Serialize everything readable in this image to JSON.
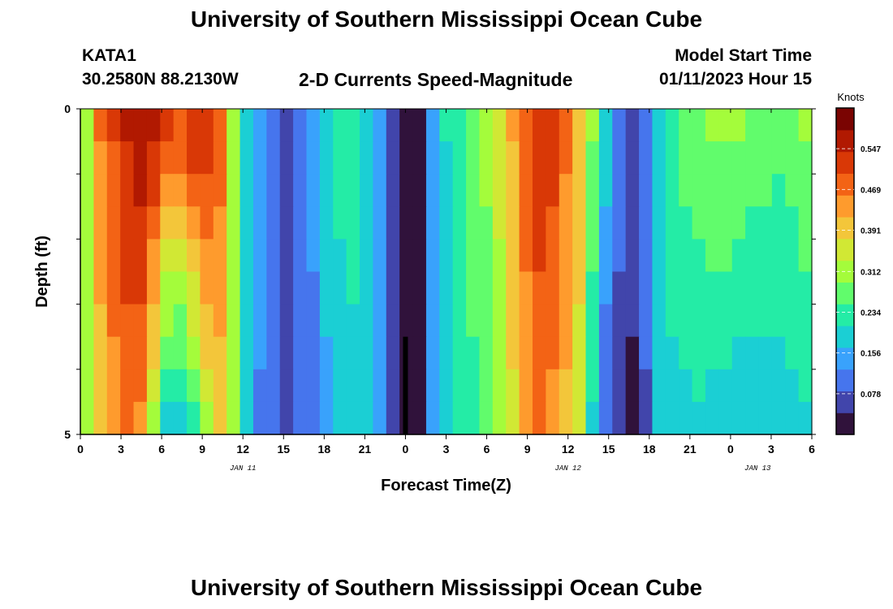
{
  "page": {
    "title": "University of Southern Mississippi Ocean Cube",
    "bottom_title": "University of Southern Mississippi Ocean Cube",
    "station": "KATA1",
    "coordinates": "30.2580N  88.2130W",
    "subtitle": "2-D Currents Speed-Magnitude",
    "model_start_label": "Model Start Time",
    "model_start_value": "01/11/2023 Hour 15"
  },
  "chart_data": {
    "type": "heatmap",
    "title": "2-D Currents Speed-Magnitude",
    "xlabel": "Forecast Time(Z)",
    "ylabel": "Depth (ft)",
    "colorbar_label": "Knots",
    "x_tick_labels": [
      "0",
      "3",
      "6",
      "9",
      "12",
      "15",
      "18",
      "21",
      "0",
      "3",
      "6",
      "9",
      "12",
      "15",
      "18",
      "21",
      "0",
      "3",
      "6"
    ],
    "y_tick_labels": [
      "0",
      "5"
    ],
    "y_range_ft": [
      0,
      5
    ],
    "date_markers": [
      {
        "label": "JAN 11",
        "hour_index": 12
      },
      {
        "label": "JAN 12",
        "hour_index": 36
      },
      {
        "label": "JAN 13",
        "hour_index": 50
      }
    ],
    "colorbar_ticks": [
      "0.078",
      "0.156",
      "0.234",
      "0.312",
      "0.391",
      "0.469",
      "0.547"
    ],
    "colorbar_range": [
      0.0,
      0.625
    ],
    "colors": [
      "#30123b",
      "#4145ab",
      "#4675ed",
      "#39a2fc",
      "#1bcfd4",
      "#24eca6",
      "#61fc6c",
      "#a4fc3b",
      "#d1e834",
      "#f3c63a",
      "#fe9b2d",
      "#f36315",
      "#d93806",
      "#b11901",
      "#7a0402"
    ],
    "depth_levels_ft": [
      0.25,
      0.75,
      1.25,
      1.75,
      2.25,
      2.75,
      3.25,
      3.75,
      4.25,
      4.75
    ],
    "hours": [
      0,
      1,
      2,
      3,
      4,
      5,
      6,
      7,
      8,
      9,
      10,
      11,
      12,
      13,
      14,
      15,
      16,
      17,
      18,
      19,
      20,
      21,
      22,
      23,
      24,
      25,
      26,
      27,
      28,
      29,
      30,
      31,
      32,
      33,
      34,
      35,
      36,
      37,
      38,
      39,
      40,
      41,
      42,
      43,
      44,
      45,
      46,
      47,
      48,
      49,
      50,
      51,
      52,
      53,
      54
    ],
    "surface_speed_knots": [
      0.33,
      0.47,
      0.51,
      0.55,
      0.58,
      0.57,
      0.52,
      0.51,
      0.55,
      0.55,
      0.5,
      0.32,
      0.2,
      0.14,
      0.1,
      0.08,
      0.1,
      0.13,
      0.18,
      0.22,
      0.22,
      0.19,
      0.15,
      0.05,
      0.02,
      0.04,
      0.15,
      0.21,
      0.25,
      0.27,
      0.3,
      0.35,
      0.42,
      0.5,
      0.54,
      0.52,
      0.47,
      0.42,
      0.3,
      0.2,
      0.12,
      0.07,
      0.1,
      0.2,
      0.25,
      0.27,
      0.29,
      0.3,
      0.31,
      0.3,
      0.29,
      0.28,
      0.27,
      0.27,
      0.3
    ],
    "bottom_speed_knots": [
      0.3,
      0.38,
      0.44,
      0.46,
      0.45,
      0.32,
      0.18,
      0.17,
      0.22,
      0.32,
      0.38,
      0.3,
      0.18,
      0.12,
      0.09,
      0.08,
      0.09,
      0.12,
      0.16,
      0.19,
      0.2,
      0.18,
      0.14,
      0.05,
      0.02,
      0.04,
      0.14,
      0.19,
      0.22,
      0.24,
      0.27,
      0.31,
      0.36,
      0.42,
      0.46,
      0.44,
      0.4,
      0.35,
      0.2,
      0.08,
      0.05,
      0.03,
      0.08,
      0.18,
      0.19,
      0.19,
      0.2,
      0.19,
      0.18,
      0.17,
      0.17,
      0.17,
      0.18,
      0.19,
      0.2
    ]
  }
}
